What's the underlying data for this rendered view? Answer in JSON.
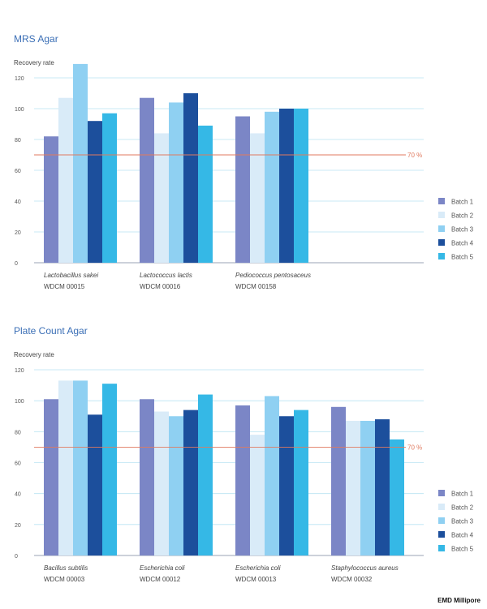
{
  "colors": {
    "batch1": "#7b86c6",
    "batch2": "#d9ebf8",
    "batch3": "#8fd0f2",
    "batch4": "#1c4f9c",
    "batch5": "#35b8e6",
    "threshold": "#e07a5f",
    "grid": "#b9e3f2",
    "title": "#3b6fb6"
  },
  "chart_data": [
    {
      "type": "bar",
      "title": "MRS Agar",
      "ylabel": "Recovery rate",
      "ylim": [
        0,
        120
      ],
      "yticks": [
        "0",
        "20",
        "40",
        "60",
        "80",
        "100",
        "120"
      ],
      "grid": true,
      "legend": "right",
      "categories": [
        {
          "name": "Lactobacillus sakei",
          "code": "WDCM 00015"
        },
        {
          "name": "Lactococcus lactis",
          "code": "WDCM 00016"
        },
        {
          "name": "Pediococcus pentosaceus",
          "code": "WDCM 00158"
        },
        {
          "name": "",
          "code": ""
        }
      ],
      "series": [
        {
          "name": "Batch 1",
          "color_key": "batch1",
          "values": [
            82,
            107,
            95,
            null
          ]
        },
        {
          "name": "Batch 2",
          "color_key": "batch2",
          "values": [
            107,
            84,
            84,
            null
          ]
        },
        {
          "name": "Batch 3",
          "color_key": "batch3",
          "values": [
            129,
            104,
            98,
            null
          ]
        },
        {
          "name": "Batch 4",
          "color_key": "batch4",
          "values": [
            92,
            110,
            100,
            null
          ]
        },
        {
          "name": "Batch 5",
          "color_key": "batch5",
          "values": [
            97,
            89,
            100,
            null
          ]
        }
      ],
      "threshold": {
        "value": 70,
        "label": "70 %"
      }
    },
    {
      "type": "bar",
      "title": "Plate Count Agar",
      "ylabel": "Recovery rate",
      "ylim": [
        0,
        120
      ],
      "yticks": [
        "0",
        "20",
        "40",
        "60",
        "80",
        "100",
        "120"
      ],
      "grid": true,
      "legend": "right",
      "categories": [
        {
          "name": "Bacillus subtilis",
          "code": "WDCM 00003"
        },
        {
          "name": "Escherichia coli",
          "code": "WDCM 00012"
        },
        {
          "name": "Escherichia coli",
          "code": "WDCM 00013"
        },
        {
          "name": "Staphylococcus aureus",
          "code": "WDCM 00032"
        }
      ],
      "series": [
        {
          "name": "Batch 1",
          "color_key": "batch1",
          "values": [
            101,
            101,
            97,
            96
          ]
        },
        {
          "name": "Batch 2",
          "color_key": "batch2",
          "values": [
            113,
            93,
            78,
            87
          ]
        },
        {
          "name": "Batch 3",
          "color_key": "batch3",
          "values": [
            113,
            90,
            103,
            87
          ]
        },
        {
          "name": "Batch 4",
          "color_key": "batch4",
          "values": [
            91,
            94,
            90,
            88
          ]
        },
        {
          "name": "Batch 5",
          "color_key": "batch5",
          "values": [
            111,
            104,
            94,
            75
          ]
        }
      ],
      "threshold": {
        "value": 70,
        "label": "70 %"
      }
    }
  ],
  "footer": "EMD Millipore"
}
